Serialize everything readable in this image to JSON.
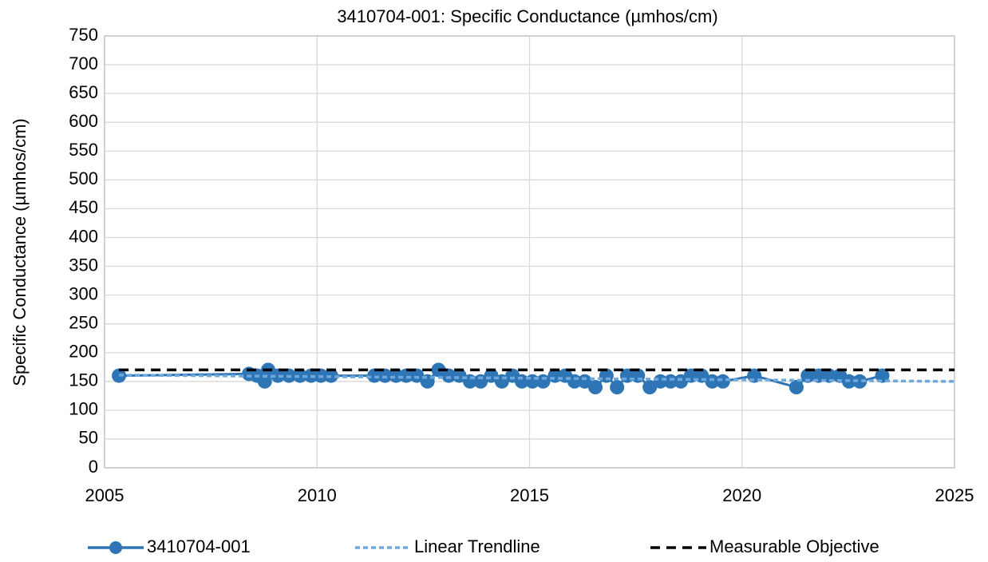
{
  "chart_data": {
    "type": "line",
    "title": "3410704-001: Specific Conductance (µmhos/cm)",
    "y_label": "Specific Conductance (µmhos/cm)",
    "xlim": [
      2005,
      2025
    ],
    "xticks": [
      2005,
      2010,
      2015,
      2020,
      2025
    ],
    "ylim": [
      0,
      750
    ],
    "yticks": [
      0,
      50,
      100,
      150,
      200,
      250,
      300,
      350,
      400,
      450,
      500,
      550,
      600,
      650,
      700,
      750
    ],
    "grid": true,
    "legend": "bottom",
    "series": [
      {
        "name": "3410704-001",
        "color": "#2e75b6",
        "style": "solid",
        "markers": true,
        "x": [
          2005.34,
          2008.4,
          2008.59,
          2008.77,
          2008.85,
          2009.08,
          2009.34,
          2009.6,
          2009.86,
          2010.09,
          2010.33,
          2011.35,
          2011.6,
          2011.86,
          2012.1,
          2012.35,
          2012.6,
          2012.86,
          2013.1,
          2013.35,
          2013.6,
          2013.85,
          2014.1,
          2014.35,
          2014.6,
          2014.82,
          2015.07,
          2015.32,
          2015.6,
          2015.84,
          2016.06,
          2016.3,
          2016.55,
          2016.81,
          2017.06,
          2017.3,
          2017.55,
          2017.83,
          2018.08,
          2018.32,
          2018.56,
          2018.8,
          2019.05,
          2019.3,
          2019.55,
          2020.29,
          2021.28,
          2021.55,
          2021.8,
          2022.05,
          2022.3,
          2022.52,
          2022.77,
          2023.3
        ],
        "values": [
          160,
          163,
          160,
          150,
          170,
          160,
          160,
          160,
          160,
          160,
          160,
          160,
          160,
          160,
          160,
          160,
          150,
          170,
          160,
          160,
          150,
          150,
          160,
          150,
          160,
          150,
          150,
          150,
          160,
          160,
          150,
          150,
          140,
          160,
          140,
          160,
          160,
          140,
          150,
          150,
          150,
          160,
          160,
          150,
          150,
          160,
          140,
          160,
          160,
          160,
          160,
          150,
          150,
          160
        ]
      },
      {
        "name": "Linear Trendline",
        "color": "#6fa8dc",
        "style": "dotted",
        "markers": false,
        "x": [
          2005.34,
          2025
        ],
        "values": [
          161,
          150
        ]
      },
      {
        "name": "Measurable Objective",
        "color": "#000000",
        "style": "dashed",
        "markers": false,
        "x": [
          2005.34,
          2025
        ],
        "values": [
          170,
          170
        ]
      }
    ]
  }
}
